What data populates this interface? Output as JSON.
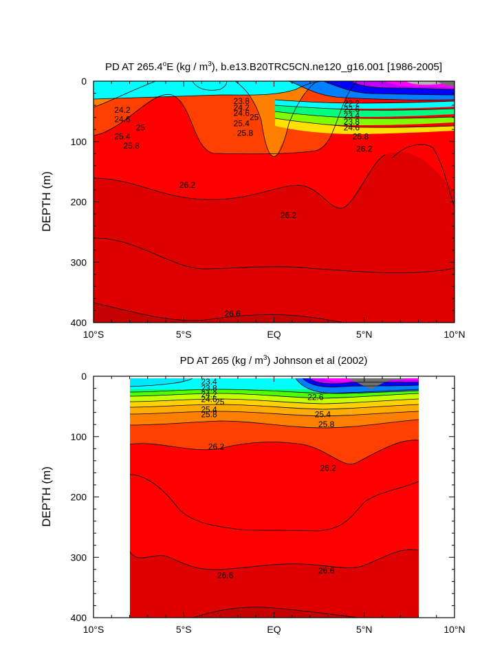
{
  "chart_data": [
    {
      "type": "contour",
      "title": "PD AT 265.4°E (kg / m³), b.e13.B20TRC5CN.ne120_g16.001 [1986-2005]",
      "title_parts": {
        "pre": "PD AT 265.4",
        "sup1": "o",
        "mid": "E (kg / m",
        "sup2": "3",
        "post": "), b.e13.B20TRC5CN.ne120_g16.001 [1986-2005]"
      },
      "ylabel": "DEPTH (m)",
      "xlim": [
        -10,
        10
      ],
      "ylim": [
        0,
        400
      ],
      "y_reversed": true,
      "x_ticks": [
        {
          "value": -10,
          "label": "10°S"
        },
        {
          "value": -5,
          "label": "5°S"
        },
        {
          "value": 0,
          "label": "EQ"
        },
        {
          "value": 5,
          "label": "5°N"
        },
        {
          "value": 10,
          "label": "10°N"
        }
      ],
      "y_ticks": [
        0,
        100,
        200,
        300,
        400
      ],
      "contour_labels": [
        {
          "x": -8.4,
          "y": 48,
          "text": "24.2"
        },
        {
          "x": -8.4,
          "y": 63,
          "text": "24.6"
        },
        {
          "x": -7.4,
          "y": 77,
          "text": "25"
        },
        {
          "x": -8.4,
          "y": 92,
          "text": "25.4"
        },
        {
          "x": -7.9,
          "y": 107,
          "text": "25.8"
        },
        {
          "x": -4.8,
          "y": 172,
          "text": "26.2"
        },
        {
          "x": -1.8,
          "y": 33,
          "text": "23.8"
        },
        {
          "x": -1.8,
          "y": 44,
          "text": "24.2"
        },
        {
          "x": -1.8,
          "y": 53,
          "text": "24.6"
        },
        {
          "x": -1.1,
          "y": 60,
          "text": "25"
        },
        {
          "x": -1.8,
          "y": 70,
          "text": "25.4"
        },
        {
          "x": -1.6,
          "y": 86,
          "text": "25.8"
        },
        {
          "x": 0.8,
          "y": 222,
          "text": "26.2"
        },
        {
          "x": 4.3,
          "y": 37,
          "text": "22.2"
        },
        {
          "x": 4.3,
          "y": 47,
          "text": "22.6"
        },
        {
          "x": 4.3,
          "y": 57,
          "text": "23.4"
        },
        {
          "x": 4.3,
          "y": 67,
          "text": "23.8"
        },
        {
          "x": 4.3,
          "y": 77,
          "text": "24.6"
        },
        {
          "x": 4.8,
          "y": 92,
          "text": "25.8"
        },
        {
          "x": 5,
          "y": 112,
          "text": "26.2"
        },
        {
          "x": -2.3,
          "y": 385,
          "text": "26.6"
        }
      ]
    },
    {
      "type": "contour",
      "title": "PD AT 265 (kg / m³) Johnson et al (2002)",
      "title_parts": {
        "pre": "PD AT 265 (kg / m",
        "sup1": "3",
        "post": ") Johnson et al (2002)"
      },
      "ylabel": "DEPTH (m)",
      "xlim": [
        -10,
        10
      ],
      "ylim": [
        0,
        400
      ],
      "y_reversed": true,
      "data_extent_x": [
        -8,
        8
      ],
      "x_ticks": [
        {
          "value": -10,
          "label": "10°S"
        },
        {
          "value": -5,
          "label": "5°S"
        },
        {
          "value": 0,
          "label": "EQ"
        },
        {
          "value": 5,
          "label": "5°N"
        },
        {
          "value": 10,
          "label": "10°N"
        }
      ],
      "y_ticks": [
        0,
        100,
        200,
        300,
        400
      ],
      "contour_labels": [
        {
          "x": -3.6,
          "y": 9,
          "text": "23.4"
        },
        {
          "x": -3.6,
          "y": 20,
          "text": "23.8"
        },
        {
          "x": -3.6,
          "y": 30,
          "text": "24.2"
        },
        {
          "x": -3.6,
          "y": 38,
          "text": "24.6"
        },
        {
          "x": -3.0,
          "y": 43,
          "text": "25"
        },
        {
          "x": -3.6,
          "y": 55,
          "text": "25.4"
        },
        {
          "x": -3.6,
          "y": 63,
          "text": "25.8"
        },
        {
          "x": -3.2,
          "y": 117,
          "text": "26.2"
        },
        {
          "x": 3.0,
          "y": 152,
          "text": "26.2"
        },
        {
          "x": 2.7,
          "y": 63,
          "text": "25.4"
        },
        {
          "x": 2.9,
          "y": 80,
          "text": "25.8"
        },
        {
          "x": 2.3,
          "y": 35,
          "text": "22.6"
        },
        {
          "x": -2.7,
          "y": 330,
          "text": "26.6"
        },
        {
          "x": 2.9,
          "y": 322,
          "text": "26.6"
        }
      ]
    }
  ]
}
